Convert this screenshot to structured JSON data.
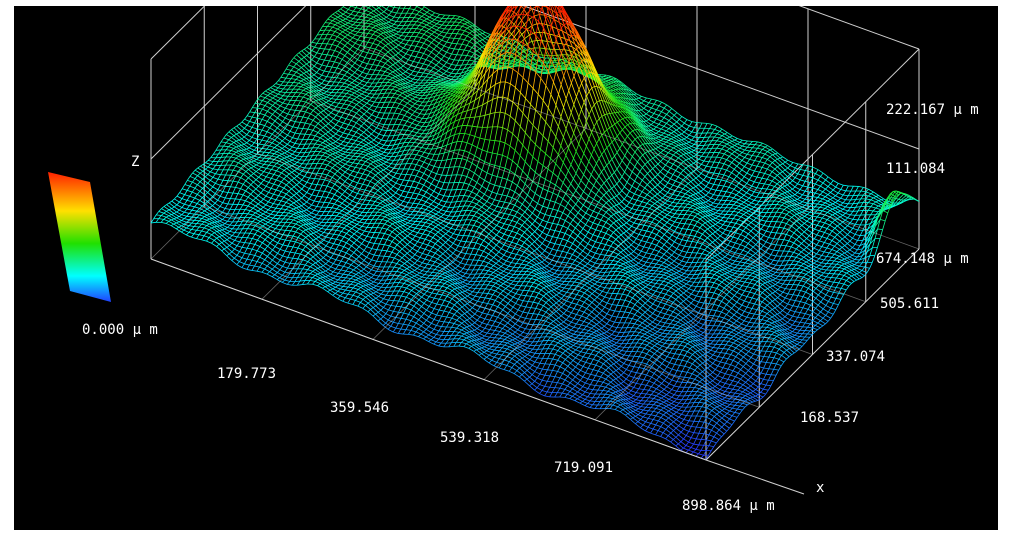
{
  "chart_data": {
    "type": "surface3d",
    "x_axis": {
      "label": "x",
      "ticks": [
        "179.773",
        "359.546",
        "539.318",
        "719.091",
        "898.864 µ m"
      ]
    },
    "y_axis": {
      "ticks": [
        "168.537",
        "337.074",
        "505.611",
        "674.148 µ m"
      ]
    },
    "z_axis": {
      "label": "Z",
      "ticks": [
        "111.084",
        "222.167 µ m"
      ]
    },
    "colorbar": {
      "min_label": "0.000 µ m",
      "colors": [
        "#ff2000",
        "#ffe000",
        "#20e000",
        "#00ffff",
        "#2040ff"
      ]
    },
    "x_range": [
      0,
      898.864
    ],
    "y_range": [
      0,
      674.148
    ],
    "z_range": [
      0,
      222.167
    ],
    "surface": {
      "base_height": 40,
      "peaks": [
        {
          "x": 380,
          "y": 480,
          "height": 185,
          "spread_x": 70,
          "spread_y": 70
        },
        {
          "x": 895,
          "y": 600,
          "height": 50,
          "spread_x": 15,
          "spread_y": 40
        }
      ],
      "slope": [
        {
          "x": 0,
          "y": 674,
          "height": 35
        },
        {
          "x": 898,
          "y": 0,
          "height": -35
        }
      ]
    },
    "grid": "on"
  }
}
